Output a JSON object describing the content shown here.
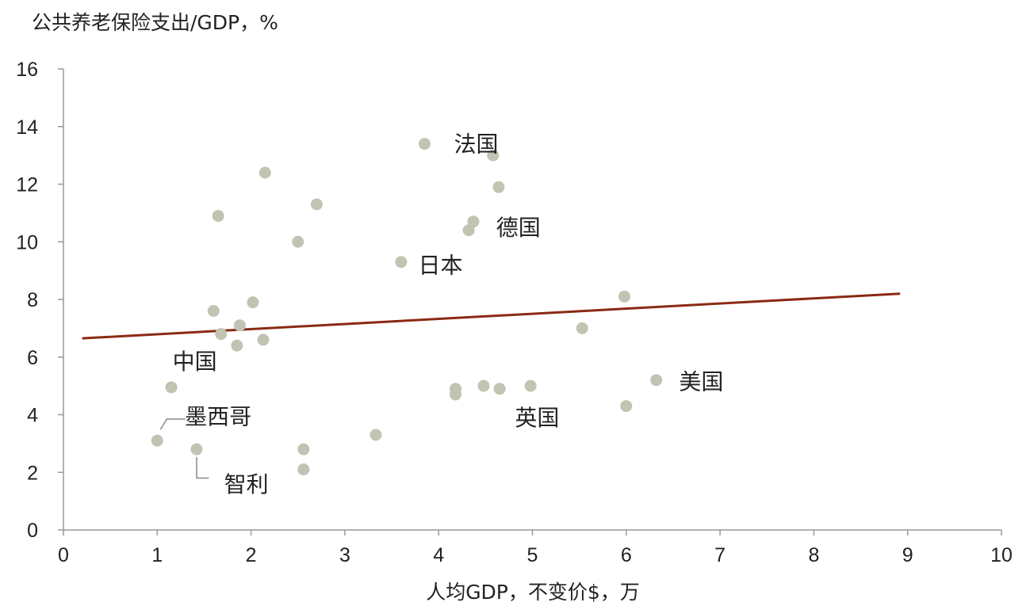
{
  "chart_data": {
    "type": "scatter",
    "ylabel": "公共养老保险支出/GDP，%",
    "xlabel": "人均GDP，不变价$，万",
    "xlim": [
      0,
      10
    ],
    "ylim": [
      0,
      16
    ],
    "x_ticks": [
      "0",
      "1",
      "2",
      "3",
      "4",
      "5",
      "6",
      "7",
      "8",
      "9",
      "10"
    ],
    "y_ticks": [
      "0",
      "2",
      "4",
      "6",
      "8",
      "10",
      "12",
      "14",
      "16"
    ],
    "grid": false,
    "points": [
      {
        "x": 1.0,
        "y": 3.1
      },
      {
        "x": 1.15,
        "y": 4.95
      },
      {
        "x": 1.42,
        "y": 2.8
      },
      {
        "x": 1.6,
        "y": 7.6
      },
      {
        "x": 1.65,
        "y": 10.9
      },
      {
        "x": 1.68,
        "y": 6.8
      },
      {
        "x": 1.85,
        "y": 6.4
      },
      {
        "x": 1.88,
        "y": 7.1
      },
      {
        "x": 2.02,
        "y": 7.9
      },
      {
        "x": 2.13,
        "y": 6.6
      },
      {
        "x": 2.15,
        "y": 12.4
      },
      {
        "x": 2.5,
        "y": 10.0
      },
      {
        "x": 2.56,
        "y": 2.8
      },
      {
        "x": 2.56,
        "y": 2.1
      },
      {
        "x": 2.7,
        "y": 11.3
      },
      {
        "x": 3.33,
        "y": 3.3
      },
      {
        "x": 3.6,
        "y": 9.3
      },
      {
        "x": 3.85,
        "y": 13.4
      },
      {
        "x": 4.18,
        "y": 4.9
      },
      {
        "x": 4.18,
        "y": 4.7
      },
      {
        "x": 4.32,
        "y": 10.4
      },
      {
        "x": 4.37,
        "y": 10.7
      },
      {
        "x": 4.48,
        "y": 5.0
      },
      {
        "x": 4.58,
        "y": 13.0
      },
      {
        "x": 4.64,
        "y": 11.9
      },
      {
        "x": 4.65,
        "y": 4.9
      },
      {
        "x": 4.98,
        "y": 5.0
      },
      {
        "x": 5.53,
        "y": 7.0
      },
      {
        "x": 5.98,
        "y": 8.1
      },
      {
        "x": 6.0,
        "y": 4.3
      },
      {
        "x": 6.32,
        "y": 5.2
      }
    ],
    "trendline": {
      "x": [
        0.2,
        8.92
      ],
      "y": [
        6.65,
        8.2
      ]
    },
    "annotations": [
      {
        "text": "法国",
        "x": 4.4,
        "y": 13.4
      },
      {
        "text": "德国",
        "x": 4.85,
        "y": 10.5
      },
      {
        "text": "日本",
        "x": 4.02,
        "y": 9.2
      },
      {
        "text": "中国",
        "x": 1.4,
        "y": 5.85
      },
      {
        "text": "墨西哥",
        "x": 1.65,
        "y": 3.95
      },
      {
        "text": "智利",
        "x": 1.95,
        "y": 1.6
      },
      {
        "text": "英国",
        "x": 5.05,
        "y": 3.9
      },
      {
        "text": "美国",
        "x": 6.8,
        "y": 5.15
      }
    ],
    "colors": {
      "points": "#c3c3b3",
      "trend": "#8a2a12",
      "axis": "#999999"
    }
  }
}
